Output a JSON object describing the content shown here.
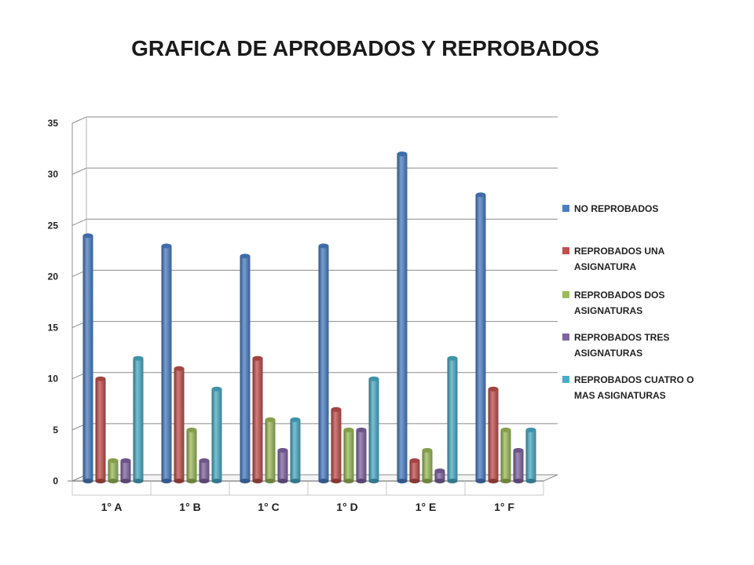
{
  "chart_data": {
    "type": "bar",
    "title": "GRAFICA DE APROBADOS Y REPROBADOS",
    "categories": [
      "1° A",
      "1° B",
      "1° C",
      "1° D",
      "1° E",
      "1° F"
    ],
    "series": [
      {
        "name": "NO REPROBADOS",
        "color": "#4a7ec4",
        "values": [
          24,
          23,
          22,
          23,
          32,
          28
        ]
      },
      {
        "name": "REPROBADOS UNA ASIGNATURA",
        "color": "#c0504d",
        "values": [
          10,
          11,
          12,
          7,
          2,
          9
        ]
      },
      {
        "name": "REPROBADOS DOS ASIGNATURAS",
        "color": "#9bbb59",
        "values": [
          2,
          5,
          6,
          5,
          3,
          5
        ]
      },
      {
        "name": "REPROBADOS TRES ASIGNATURAS",
        "color": "#8064a2",
        "values": [
          2,
          2,
          3,
          5,
          1,
          3
        ]
      },
      {
        "name": "REPROBADOS CUATRO O MAS ASIGNATURAS",
        "color": "#4bacc6",
        "values": [
          12,
          9,
          6,
          10,
          12,
          5
        ]
      }
    ],
    "ylim": [
      0,
      35
    ],
    "yticks": [
      "0",
      "5",
      "10",
      "15",
      "20",
      "25",
      "30",
      "35"
    ],
    "grid": true,
    "legend": "right",
    "legend_lines": [
      [
        "NO REPROBADOS"
      ],
      [
        "REPROBADOS UNA",
        "ASIGNATURA"
      ],
      [
        "REPROBADOS DOS",
        "ASIGNATURAS"
      ],
      [
        "REPROBADOS TRES",
        "ASIGNATURAS"
      ],
      [
        "REPROBADOS CUATRO O",
        "MAS ASIGNATURAS"
      ]
    ]
  }
}
